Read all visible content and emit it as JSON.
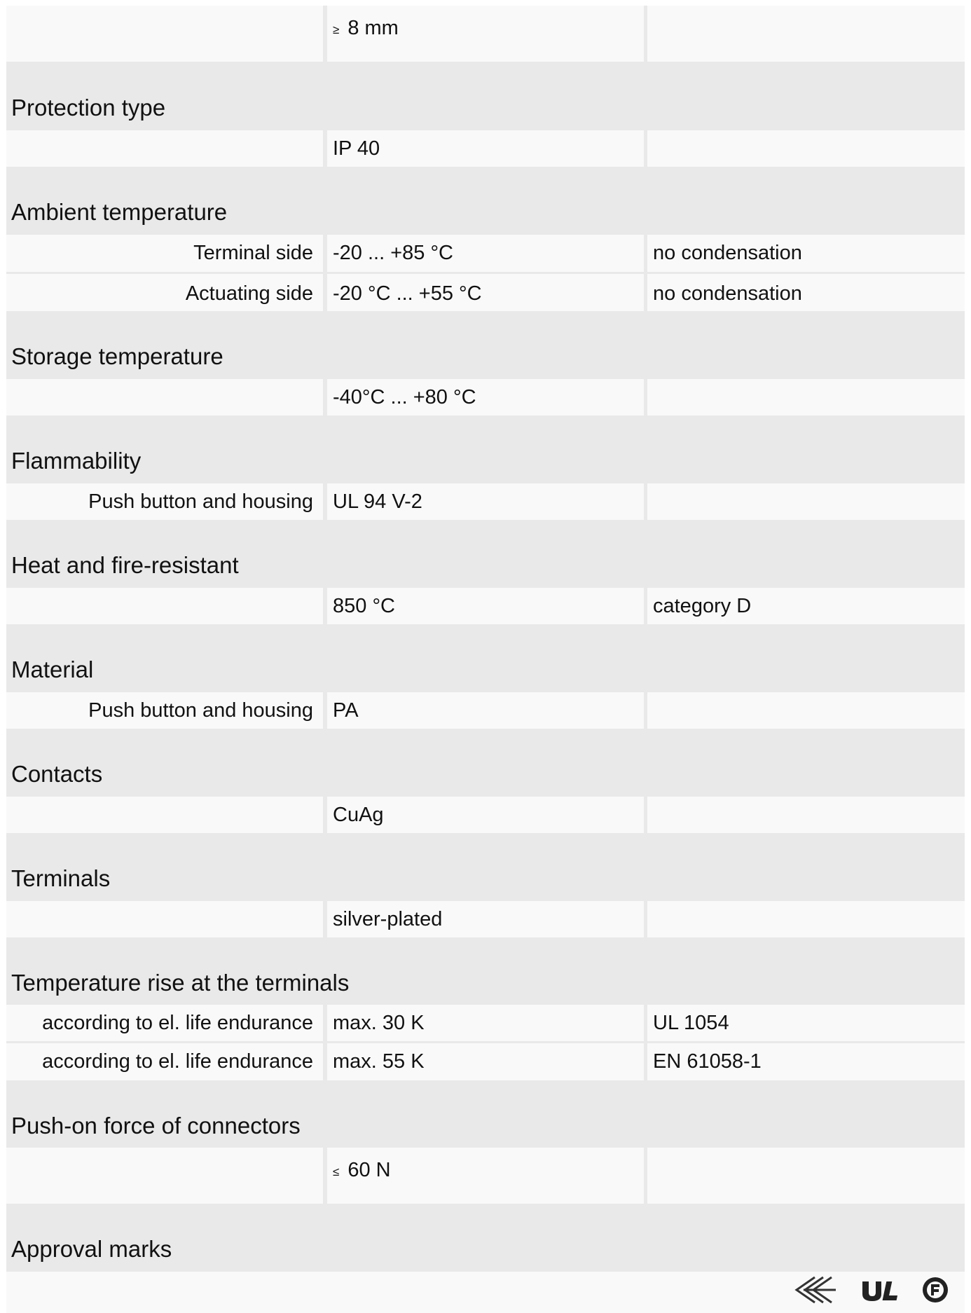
{
  "first_row": {
    "symbol": "≥",
    "value": "8 mm",
    "note": ""
  },
  "sections": [
    {
      "heading": "Protection type",
      "rows": [
        {
          "label": "",
          "value": "IP 40",
          "note": ""
        }
      ]
    },
    {
      "heading": "Ambient temperature",
      "rows": [
        {
          "label": "Terminal side",
          "value": "-20 ... +85 °C",
          "note": "no condensation"
        },
        {
          "label": "Actuating side",
          "value": "-20 °C ... +55 °C",
          "note": "no condensation"
        }
      ]
    },
    {
      "heading": "Storage temperature",
      "rows": [
        {
          "label": "",
          "value": "-40°C ... +80 °C",
          "note": ""
        }
      ]
    },
    {
      "heading": "Flammability",
      "rows": [
        {
          "label": "Push button and housing",
          "value": "UL 94 V-2",
          "note": ""
        }
      ]
    },
    {
      "heading": "Heat and fire-resistant",
      "rows": [
        {
          "label": "",
          "value": "850 °C",
          "note": "category D"
        }
      ]
    },
    {
      "heading": "Material",
      "rows": [
        {
          "label": "Push button and housing",
          "value": "PA",
          "note": ""
        }
      ]
    },
    {
      "heading": "Contacts",
      "rows": [
        {
          "label": "",
          "value": "CuAg",
          "note": ""
        }
      ]
    },
    {
      "heading": "Terminals",
      "rows": [
        {
          "label": "",
          "value": "silver-plated",
          "note": ""
        }
      ]
    },
    {
      "heading": "Temperature rise at the terminals",
      "rows": [
        {
          "label": "according to el. life endurance",
          "value": "max. 30 K",
          "note": "UL 1054"
        },
        {
          "label": "according to el. life endurance",
          "value": "max. 55 K",
          "note": "EN 61058-1"
        }
      ]
    },
    {
      "heading": "Push-on force of connectors",
      "rows": [
        {
          "label": "",
          "symbol": "≤",
          "value": "60 N",
          "note": ""
        }
      ]
    },
    {
      "heading": "Approval marks",
      "rows": []
    }
  ],
  "approval_icons": [
    "enec-approval-icon",
    "ul-recognized-icon",
    "csa-approval-icon"
  ],
  "colors": {
    "band": "#e9e9e9",
    "cell": "#f9f9f9",
    "text": "#111111"
  }
}
